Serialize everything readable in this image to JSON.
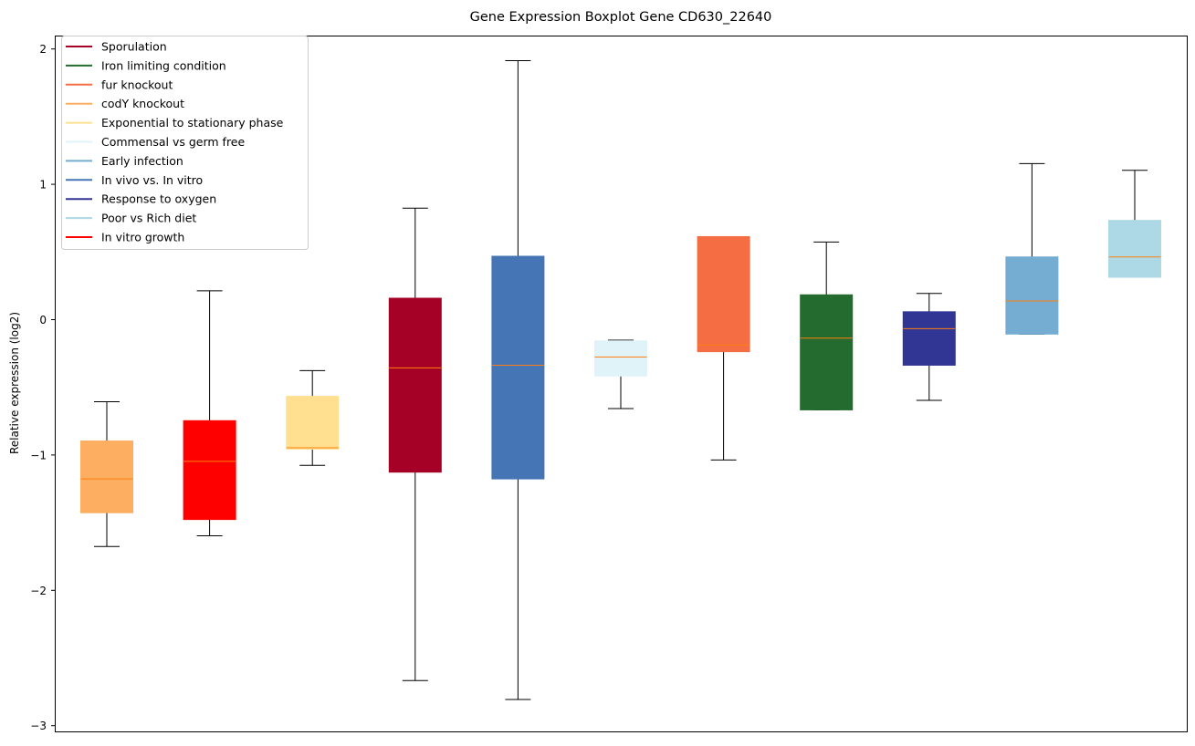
{
  "chart_data": {
    "type": "boxplot",
    "title": "Gene Expression Boxplot Gene CD630_22640",
    "xlabel": "",
    "ylabel": "Relative expression (log2)",
    "ylim": [
      -3.05,
      2.1
    ],
    "yticks": [
      -3,
      -2,
      -1,
      0,
      1,
      2
    ],
    "ytick_labels": [
      "−3",
      "−2",
      "−1",
      "0",
      "1",
      "2"
    ],
    "grid": false,
    "legend_position": "top-left",
    "median_color": "#ff7f0e",
    "boxes": [
      {
        "name": "codY knockout",
        "color": "#fdae61",
        "whislo": -1.68,
        "q1": -1.43,
        "med": -1.18,
        "q3": -0.9,
        "whishi": -0.61
      },
      {
        "name": "In vitro growth",
        "color": "#ff0000",
        "whislo": -1.6,
        "q1": -1.48,
        "med": -1.05,
        "q3": -0.75,
        "whishi": 0.21
      },
      {
        "name": "Exponential to stationary phase",
        "color": "#fee090",
        "whislo": -1.08,
        "q1": -0.96,
        "med": -0.95,
        "q3": -0.57,
        "whishi": -0.38
      },
      {
        "name": "Sporulation",
        "color": "#a50026",
        "whislo": -2.67,
        "q1": -1.13,
        "med": -0.36,
        "q3": 0.155,
        "whishi": 0.82
      },
      {
        "name": "In vivo vs. In vitro",
        "color": "#4575b4",
        "whislo": -2.81,
        "q1": -1.18,
        "med": -0.34,
        "q3": 0.465,
        "whishi": 1.91
      },
      {
        "name": "Commensal vs germ free",
        "color": "#e0f3f8",
        "whislo": -0.66,
        "q1": -0.42,
        "med": -0.28,
        "q3": -0.16,
        "whishi": -0.155
      },
      {
        "name": "fur knockout",
        "color": "#f46d43",
        "whislo": -1.04,
        "q1": -0.24,
        "med": -0.19,
        "q3": 0.61,
        "whishi": 0.61
      },
      {
        "name": "Iron limiting condition",
        "color": "#236b2e",
        "whislo": -0.67,
        "q1": -0.67,
        "med": -0.14,
        "q3": 0.18,
        "whishi": 0.57
      },
      {
        "name": "Response to oxygen",
        "color": "#313695",
        "whislo": -0.6,
        "q1": -0.34,
        "med": -0.07,
        "q3": 0.055,
        "whishi": 0.19
      },
      {
        "name": "Early infection",
        "color": "#74add1",
        "whislo": -0.11,
        "q1": -0.11,
        "med": 0.135,
        "q3": 0.46,
        "whishi": 1.15
      },
      {
        "name": "Poor vs Rich diet",
        "color": "#add8e6",
        "whislo": 0.31,
        "q1": 0.31,
        "med": 0.46,
        "q3": 0.73,
        "whishi": 1.1
      }
    ],
    "legend": [
      {
        "label": "Sporulation",
        "color": "#a50026"
      },
      {
        "label": "Iron limiting condition",
        "color": "#236b2e"
      },
      {
        "label": "fur knockout",
        "color": "#f46d43"
      },
      {
        "label": "codY knockout",
        "color": "#fdae61"
      },
      {
        "label": "Exponential to stationary phase",
        "color": "#fee090"
      },
      {
        "label": "Commensal vs germ free",
        "color": "#e0f3f8"
      },
      {
        "label": "Early infection",
        "color": "#74add1"
      },
      {
        "label": "In vivo vs. In vitro",
        "color": "#4575b4"
      },
      {
        "label": "Response to oxygen",
        "color": "#313695"
      },
      {
        "label": "Poor vs Rich diet",
        "color": "#add8e6"
      },
      {
        "label": "In vitro growth",
        "color": "#ff0000"
      }
    ]
  }
}
